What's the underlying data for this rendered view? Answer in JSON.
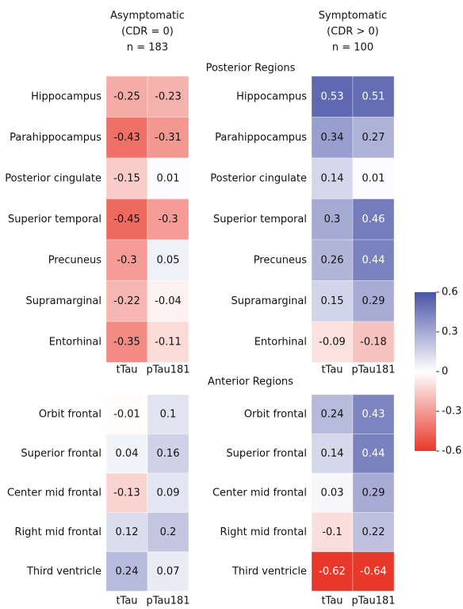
{
  "chart_data": {
    "type": "heatmap",
    "groups": [
      {
        "title": [
          "Asymptomatic",
          "(CDR = 0)",
          "n = 183"
        ]
      },
      {
        "title": [
          "Symptomatic",
          "(CDR > 0)",
          "n = 100"
        ]
      }
    ],
    "columns": [
      "tTau",
      "pTau181"
    ],
    "sections": [
      {
        "title": "Posterior Regions",
        "rows": [
          "Hippocampus",
          "Parahippocampus",
          "Posterior cingulate",
          "Superior temporal",
          "Precuneus",
          "Supramarginal",
          "Entorhinal"
        ],
        "values": [
          [
            [
              -0.25,
              -0.23
            ],
            [
              -0.43,
              -0.31
            ],
            [
              -0.15,
              0.01
            ],
            [
              -0.45,
              -0.3
            ],
            [
              -0.3,
              0.05
            ],
            [
              -0.22,
              -0.04
            ],
            [
              -0.35,
              -0.11
            ]
          ],
          [
            [
              0.53,
              0.51
            ],
            [
              0.34,
              0.27
            ],
            [
              0.14,
              0.01
            ],
            [
              0.3,
              0.46
            ],
            [
              0.26,
              0.44
            ],
            [
              0.15,
              0.29
            ],
            [
              -0.09,
              -0.18
            ]
          ]
        ]
      },
      {
        "title": "Anterior Regions",
        "rows": [
          "Orbit frontal",
          "Superior frontal",
          "Center mid frontal",
          "Right mid frontal",
          "Third ventricle"
        ],
        "values": [
          [
            [
              -0.01,
              0.1
            ],
            [
              0.04,
              0.16
            ],
            [
              -0.13,
              0.09
            ],
            [
              0.12,
              0.2
            ],
            [
              0.24,
              0.07
            ]
          ],
          [
            [
              0.24,
              0.43
            ],
            [
              0.14,
              0.44
            ],
            [
              0.03,
              0.29
            ],
            [
              -0.1,
              0.22
            ],
            [
              -0.62,
              -0.64
            ]
          ]
        ]
      }
    ],
    "colorbar": {
      "lim": [
        -0.6,
        0.6
      ],
      "ticks": [
        0.6,
        0.3,
        0,
        -0.3,
        -0.6
      ],
      "colors": [
        "#e8382a",
        "#ffffff",
        "#4a54a6"
      ]
    }
  }
}
